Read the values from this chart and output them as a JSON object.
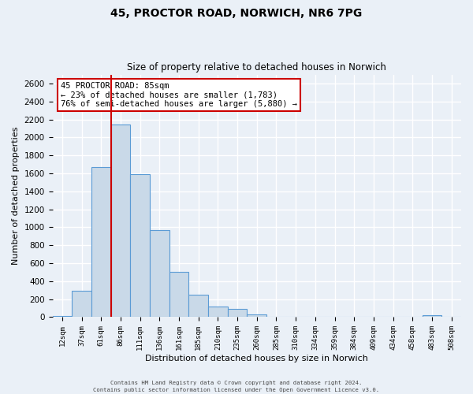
{
  "title1": "45, PROCTOR ROAD, NORWICH, NR6 7PG",
  "title2": "Size of property relative to detached houses in Norwich",
  "xlabel": "Distribution of detached houses by size in Norwich",
  "ylabel": "Number of detached properties",
  "bin_labels": [
    "12sqm",
    "37sqm",
    "61sqm",
    "86sqm",
    "111sqm",
    "136sqm",
    "161sqm",
    "185sqm",
    "210sqm",
    "235sqm",
    "260sqm",
    "285sqm",
    "310sqm",
    "334sqm",
    "359sqm",
    "384sqm",
    "409sqm",
    "434sqm",
    "458sqm",
    "483sqm",
    "508sqm"
  ],
  "bar_values": [
    15,
    295,
    1670,
    2140,
    1590,
    965,
    505,
    250,
    120,
    95,
    30,
    5,
    0,
    0,
    0,
    0,
    5,
    0,
    0,
    20,
    0
  ],
  "bar_color": "#c9d9e8",
  "bar_edge_color": "#5b9bd5",
  "bg_color": "#eaf0f7",
  "grid_color": "#ffffff",
  "annotation_title": "45 PROCTOR ROAD: 85sqm",
  "annotation_line1": "← 23% of detached houses are smaller (1,783)",
  "annotation_line2": "76% of semi-detached houses are larger (5,880) →",
  "annotation_box_color": "#ffffff",
  "annotation_box_edge": "#cc0000",
  "vline_color": "#cc0000",
  "vline_x_bin": 3,
  "ylim": [
    0,
    2700
  ],
  "yticks": [
    0,
    200,
    400,
    600,
    800,
    1000,
    1200,
    1400,
    1600,
    1800,
    2000,
    2200,
    2400,
    2600
  ],
  "footer1": "Contains HM Land Registry data © Crown copyright and database right 2024.",
  "footer2": "Contains public sector information licensed under the Open Government Licence v3.0."
}
